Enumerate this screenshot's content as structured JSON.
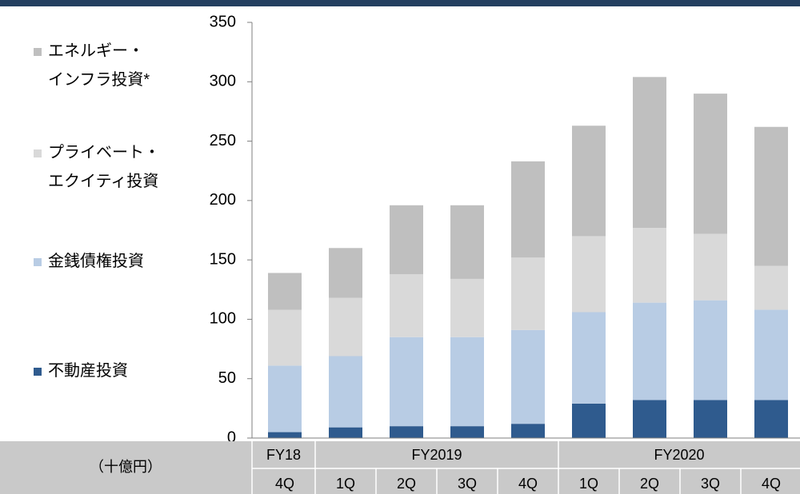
{
  "chart_data": {
    "type": "stacked_bar",
    "table_header": "（十億円）",
    "groups": [
      {
        "name": "FY18",
        "categories": [
          "4Q"
        ]
      },
      {
        "name": "FY2019",
        "categories": [
          "1Q",
          "2Q",
          "3Q",
          "4Q"
        ]
      },
      {
        "name": "FY2020",
        "categories": [
          "1Q",
          "2Q",
          "3Q",
          "4Q"
        ]
      }
    ],
    "series": [
      {
        "name": "不動産投資",
        "color": "#2f5b8e",
        "values": [
          5,
          9,
          10,
          10,
          12,
          29,
          32,
          32,
          32
        ]
      },
      {
        "name": "金銭債権投資",
        "color": "#b8cce4",
        "values": [
          56,
          60,
          75,
          75,
          79,
          77,
          82,
          84,
          76
        ]
      },
      {
        "name": "プライベート・\nエクイティ投資",
        "color": "#d9d9d9",
        "values": [
          47,
          49,
          53,
          49,
          61,
          64,
          63,
          56,
          37
        ]
      },
      {
        "name": "エネルギー・\nインフラ投資*",
        "color": "#bfbfbf",
        "values": [
          31,
          42,
          58,
          62,
          81,
          93,
          127,
          118,
          117
        ]
      }
    ],
    "ylim": [
      0,
      350
    ],
    "yticks": [
      0,
      50,
      100,
      150,
      200,
      250,
      300,
      350
    ]
  }
}
